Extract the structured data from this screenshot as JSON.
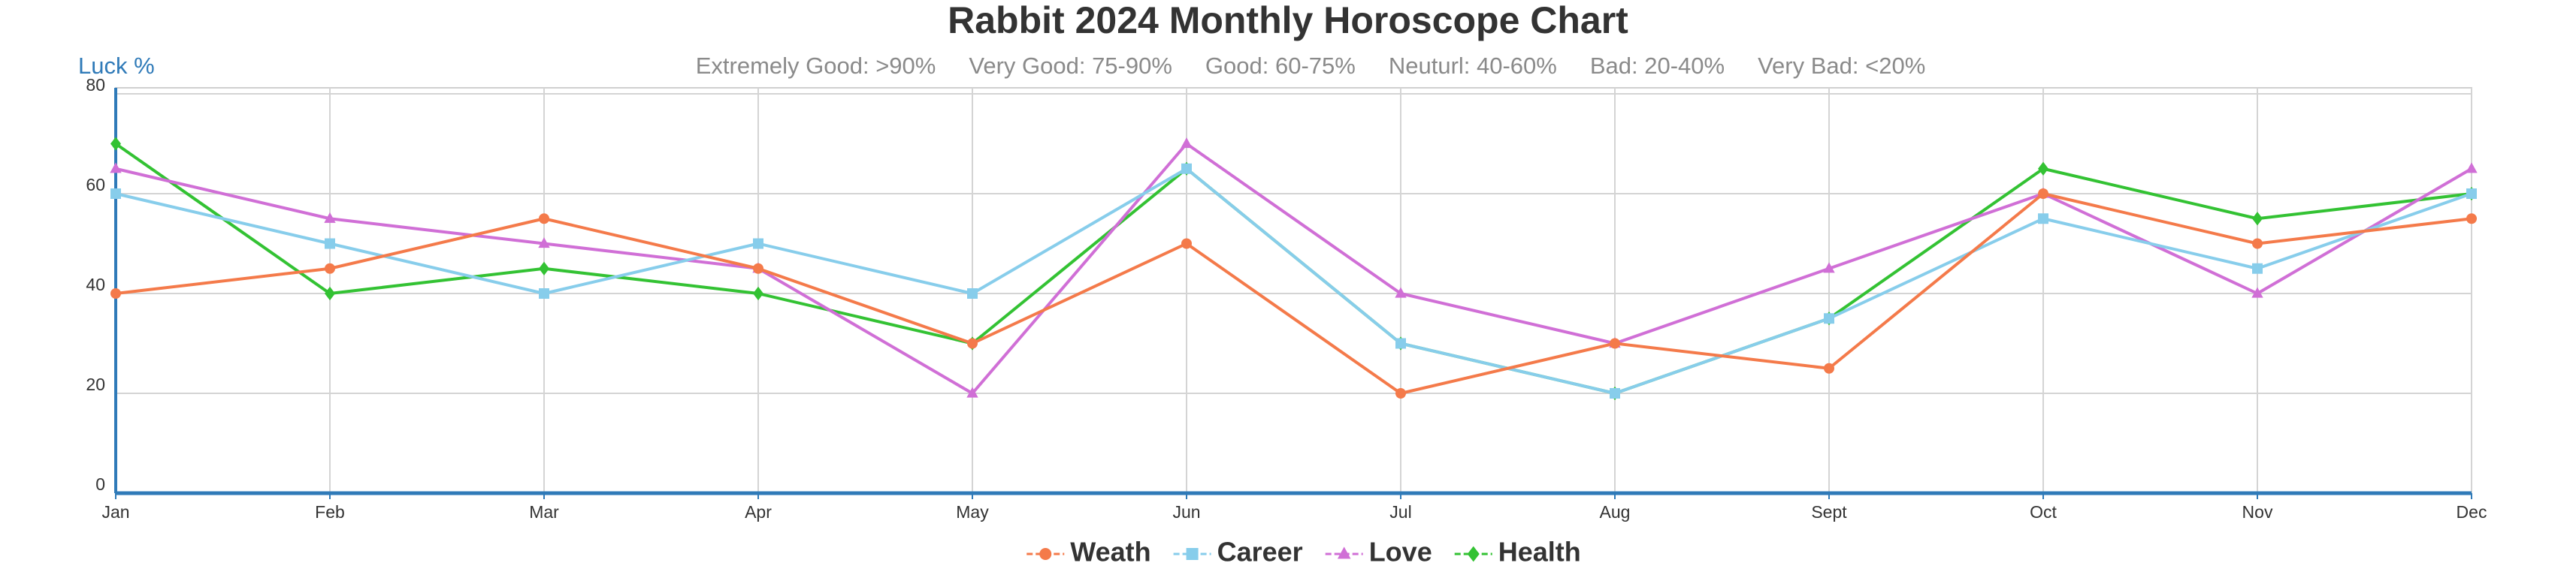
{
  "chart_data": {
    "type": "line",
    "title": "Rabbit 2024 Monthly Horoscope Chart",
    "subtitle_items": [
      "Extremely Good: >90%",
      "Very Good: 75-90%",
      "Good: 60-75%",
      "Neuturl: 40-60%",
      "Bad: 20-40%",
      "Very Bad: <20%"
    ],
    "y_label": "Luck %",
    "categories": [
      "Jan",
      "Feb",
      "Mar",
      "Apr",
      "May",
      "Jun",
      "Jul",
      "Aug",
      "Sept",
      "Oct",
      "Nov",
      "Dec"
    ],
    "series": [
      {
        "name": "Weath",
        "color": "#f47a4a",
        "marker": "circle",
        "values": [
          40,
          45,
          55,
          45,
          30,
          50,
          20,
          30,
          25,
          60,
          50,
          55
        ]
      },
      {
        "name": "Career",
        "color": "#87cdeb",
        "marker": "square",
        "values": [
          60,
          50,
          40,
          50,
          40,
          65,
          30,
          20,
          35,
          55,
          45,
          60
        ]
      },
      {
        "name": "Love",
        "color": "#d06fd6",
        "marker": "triangle",
        "values": [
          65,
          55,
          50,
          45,
          20,
          70,
          40,
          30,
          45,
          60,
          40,
          65
        ]
      },
      {
        "name": "Health",
        "color": "#33c233",
        "marker": "diamond",
        "values": [
          70,
          40,
          45,
          40,
          30,
          65,
          30,
          20,
          35,
          65,
          55,
          60
        ]
      }
    ],
    "ylim": [
      0,
      80
    ],
    "yticks": [
      0,
      20,
      40,
      60,
      80
    ],
    "grid": true,
    "legend": "bottom"
  }
}
